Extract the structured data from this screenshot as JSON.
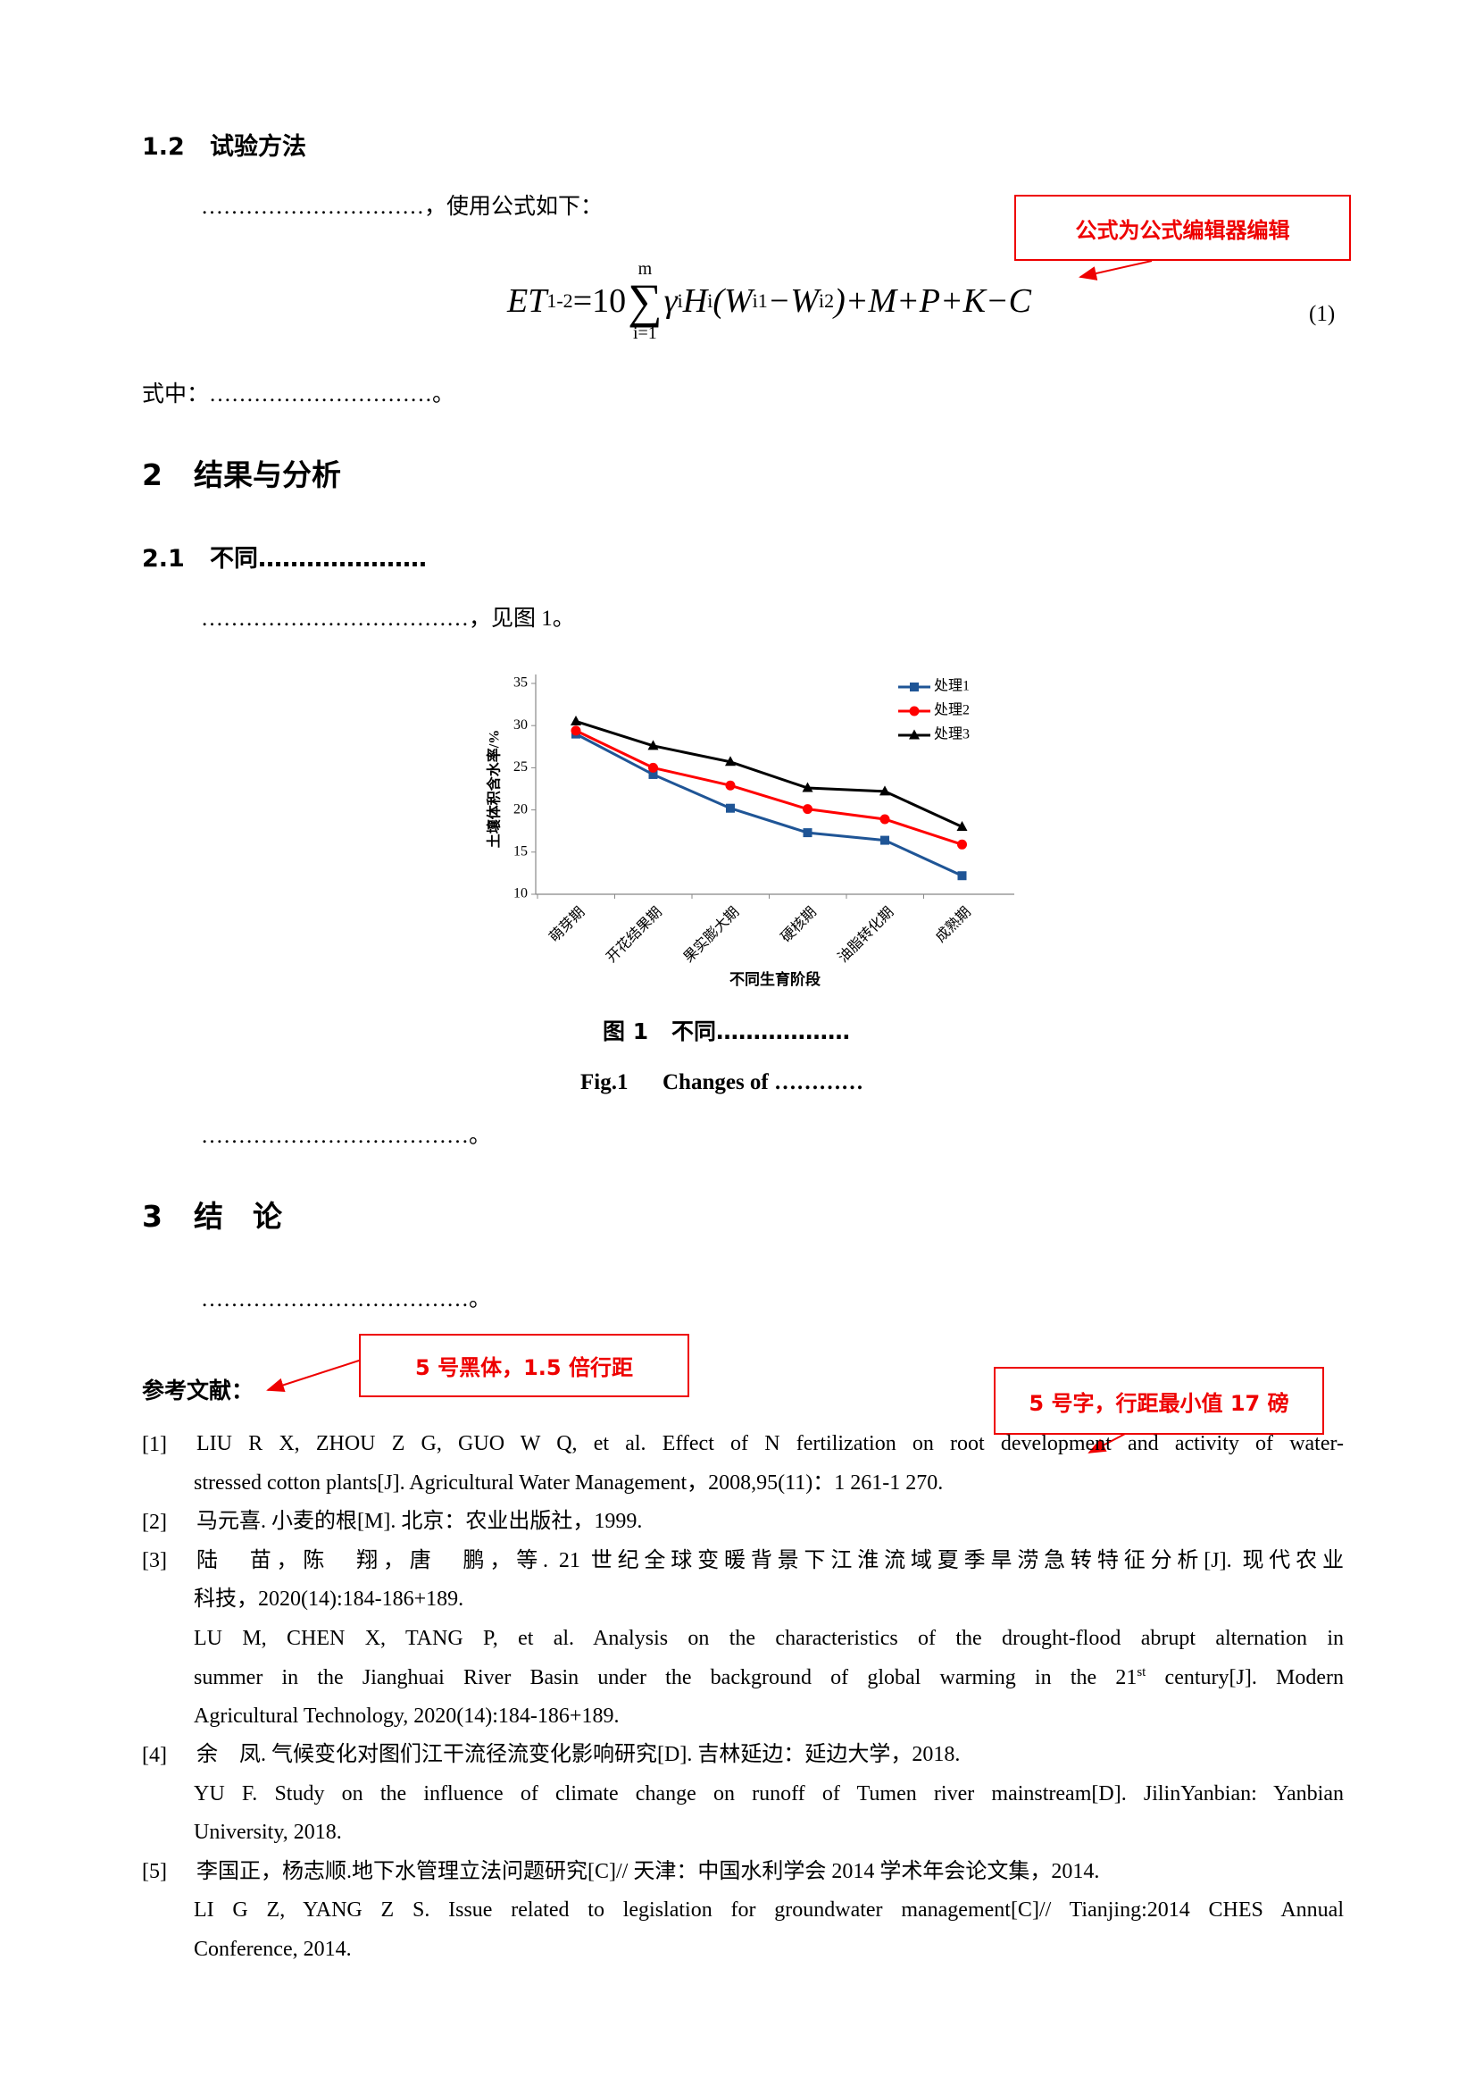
{
  "heading_1_2": {
    "number": "1.2",
    "title": "试验方法"
  },
  "para_method": "…………………………，使用公式如下：",
  "equation": {
    "lhs": "ET",
    "lhs_sub": "1-2",
    "eq": "=10",
    "sum_top": "m",
    "sigma": "∑",
    "sum_bottom": "i=1",
    "gamma": "γ",
    "gamma_sub": "i",
    "h": "H",
    "h_sub": "i",
    "w1": "(W",
    "w1_sub": "i1",
    "w2": "−W",
    "w2_sub": "i2",
    "rest": ")+M+P+K−C",
    "number": "(1)"
  },
  "equation_note": "式中：…………………………。",
  "heading_2": {
    "number": "2",
    "title": "结果与分析"
  },
  "heading_2_1": {
    "number": "2.1",
    "title": "不同…………………"
  },
  "para_results": "………………………………，见图 1。",
  "chart_data": {
    "type": "line",
    "y_label": "土壤体积含水率/%",
    "x_label": "不同生育阶段",
    "categories": [
      "萌芽期",
      "开花结果期",
      "果实膨大期",
      "硬核期",
      "油脂转化期",
      "成熟期"
    ],
    "series": [
      {
        "name": "处理1",
        "color": "#1f5596",
        "marker": "square",
        "values": [
          29.0,
          24.2,
          20.2,
          17.3,
          16.4,
          12.2
        ]
      },
      {
        "name": "处理2",
        "color": "#ff0000",
        "marker": "circle",
        "values": [
          29.4,
          25.0,
          22.9,
          20.1,
          18.9,
          15.9
        ]
      },
      {
        "name": "处理3",
        "color": "#000000",
        "marker": "triangle",
        "values": [
          30.5,
          27.6,
          25.7,
          22.6,
          22.2,
          18.0
        ]
      }
    ],
    "ylim": [
      10,
      35
    ],
    "yticks": [
      10,
      15,
      20,
      25,
      30,
      35
    ],
    "legend": "upper right"
  },
  "figure_caption": {
    "cn_label": "图 1",
    "cn_title": "不同………………",
    "en_label": "Fig.1",
    "en_title": "Changes of  …………"
  },
  "para_after_figure": "………………………………。",
  "heading_3": {
    "number": "3",
    "title": "结　论"
  },
  "para_conclusion": "………………………………。",
  "references_title": "参考文献：",
  "references": [
    {
      "label": "[1]",
      "lines": [
        "LIU R X, ZHOU Z G, GUO W Q, et al. Effect of N fertilization on root development and activity of water-",
        "stressed cotton plants[J]. Agricultural Water Management，2008,95(11)：1 261-1 270."
      ]
    },
    {
      "label": "[2]",
      "lines": [
        "马元喜. 小麦的根[M]. 北京：农业出版社，1999."
      ]
    },
    {
      "label": "[3]",
      "lines": [
        "陆　苗，陈　翔，唐　鹏，等. 21 世纪全球变暖背景下江淮流域夏季旱涝急转特征分析[J]. 现代农业",
        "科技，2020(14):184-186+189.",
        "LU M, CHEN X, TANG P, et al. Analysis on the characteristics of the drought-flood abrupt alternation in",
        {
          "text": "summer in the Jianghuai River Basin under the background of global warming in the 21",
          "sup": "st",
          "tail": " century[J]. Modern"
        },
        "Agricultural Technology, 2020(14):184-186+189."
      ]
    },
    {
      "label": "[4]",
      "lines": [
        "余　凤. 气候变化对图们江干流径流变化影响研究[D]. 吉林延边：延边大学，2018.",
        "YU F. Study on the influence of climate change on runoff of Tumen river mainstream[D]. JilinYanbian: Yanbian",
        "University, 2018."
      ]
    },
    {
      "label": "[5]",
      "lines": [
        "李国正，杨志顺.地下水管理立法问题研究[C]// 天津：中国水利学会 2014 学术年会论文集，2014.",
        "LI G Z, YANG Z S. Issue related to legislation for groundwater management[C]// Tianjing:2014 CHES Annual",
        "Conference, 2014."
      ]
    }
  ],
  "annotations": [
    {
      "text": "公式为公式编辑器编辑"
    },
    {
      "text": "5 号黑体，1.5 倍行距"
    },
    {
      "text": "5 号字，行距最小值 17 磅"
    }
  ]
}
